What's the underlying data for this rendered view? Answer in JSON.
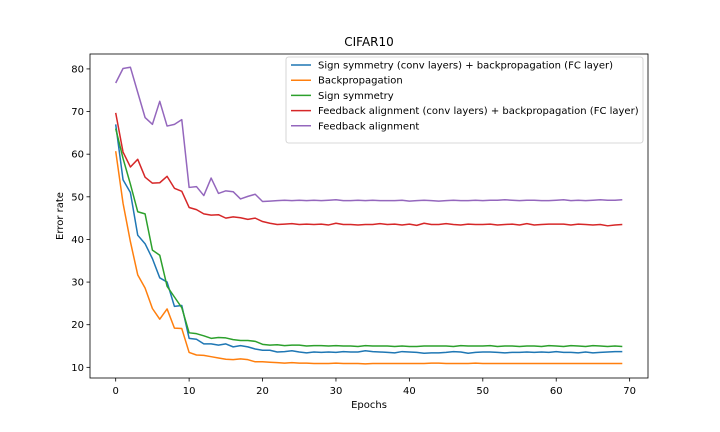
{
  "chart_data": {
    "type": "line",
    "title": "CIFAR10",
    "xlabel": "Epochs",
    "ylabel": "Error rate",
    "xlim": [
      -3.5,
      72.5
    ],
    "ylim": [
      7.5,
      83.5
    ],
    "xticks": [
      0,
      10,
      20,
      30,
      40,
      50,
      60,
      70
    ],
    "yticks": [
      10,
      20,
      30,
      40,
      50,
      60,
      70,
      80
    ],
    "grid": false,
    "legend_position": "top-right",
    "series": [
      {
        "name": "Sign symmetry (conv layers) + backpropagation (FC layer)",
        "color": "#1f77b4",
        "values": [
          67.0,
          54.0,
          51.0,
          41.0,
          39.0,
          35.5,
          31.0,
          30.0,
          24.3,
          24.5,
          16.8,
          16.6,
          15.5,
          15.5,
          15.2,
          15.5,
          14.8,
          15.1,
          14.8,
          14.3,
          14.0,
          14.0,
          13.6,
          13.7,
          13.9,
          13.6,
          13.4,
          13.6,
          13.5,
          13.6,
          13.5,
          13.7,
          13.6,
          13.6,
          13.9,
          13.7,
          13.6,
          13.5,
          13.4,
          13.7,
          13.6,
          13.5,
          13.3,
          13.4,
          13.4,
          13.5,
          13.7,
          13.6,
          13.3,
          13.5,
          13.6,
          13.6,
          13.5,
          13.4,
          13.5,
          13.5,
          13.6,
          13.5,
          13.6,
          13.5,
          13.7,
          13.5,
          13.5,
          13.4,
          13.6,
          13.4,
          13.5,
          13.6,
          13.7,
          13.7
        ]
      },
      {
        "name": "Backpropagation",
        "color": "#ff7f0e",
        "values": [
          60.7,
          48.5,
          39.5,
          31.7,
          28.6,
          23.8,
          21.3,
          23.7,
          19.2,
          19.1,
          13.5,
          12.9,
          12.8,
          12.5,
          12.2,
          11.9,
          11.8,
          12.0,
          11.8,
          11.3,
          11.3,
          11.2,
          11.1,
          11.0,
          11.1,
          11.0,
          11.0,
          10.9,
          10.9,
          10.9,
          11.0,
          10.9,
          10.9,
          10.9,
          10.8,
          10.9,
          10.9,
          10.9,
          10.9,
          10.9,
          10.9,
          10.9,
          10.9,
          11.0,
          11.0,
          10.9,
          10.9,
          10.9,
          10.9,
          11.0,
          10.9,
          10.9,
          10.9,
          10.9,
          10.9,
          10.9,
          10.9,
          10.9,
          10.9,
          10.9,
          10.9,
          10.9,
          10.9,
          10.9,
          10.9,
          10.9,
          10.9,
          10.9,
          10.9,
          10.9
        ]
      },
      {
        "name": "Sign symmetry",
        "color": "#2ca02c",
        "values": [
          66.0,
          59.0,
          53.0,
          46.5,
          46.0,
          37.5,
          36.3,
          29.0,
          26.5,
          24.0,
          18.1,
          17.9,
          17.4,
          16.8,
          17.0,
          16.9,
          16.5,
          16.3,
          16.3,
          16.1,
          15.4,
          15.2,
          15.3,
          15.1,
          15.2,
          15.2,
          15.0,
          15.1,
          15.1,
          15.0,
          15.1,
          15.0,
          15.0,
          14.9,
          15.1,
          15.0,
          15.0,
          15.0,
          14.9,
          15.0,
          14.9,
          14.9,
          15.0,
          15.0,
          15.0,
          15.0,
          14.9,
          15.1,
          15.0,
          15.0,
          15.0,
          15.1,
          14.9,
          15.0,
          15.0,
          14.9,
          15.0,
          15.0,
          14.9,
          15.1,
          15.0,
          14.9,
          15.1,
          15.0,
          14.9,
          15.1,
          15.0,
          14.9,
          15.0,
          14.9
        ]
      },
      {
        "name": "Feedback alignment (conv layers) + backpropagation (FC layer)",
        "color": "#d62728",
        "values": [
          69.7,
          60.5,
          57.0,
          58.8,
          54.6,
          53.2,
          53.3,
          54.8,
          52.0,
          51.3,
          47.5,
          47.0,
          46.0,
          45.7,
          45.8,
          45.0,
          45.3,
          45.1,
          44.7,
          45.0,
          44.2,
          43.8,
          43.5,
          43.6,
          43.7,
          43.5,
          43.6,
          43.5,
          43.6,
          43.4,
          43.8,
          43.5,
          43.5,
          43.4,
          43.5,
          43.5,
          43.7,
          43.5,
          43.6,
          43.4,
          43.6,
          43.3,
          43.8,
          43.5,
          43.5,
          43.7,
          43.5,
          43.4,
          43.6,
          43.5,
          43.5,
          43.6,
          43.4,
          43.5,
          43.6,
          43.4,
          43.7,
          43.4,
          43.5,
          43.6,
          43.6,
          43.6,
          43.4,
          43.6,
          43.5,
          43.4,
          43.5,
          43.2,
          43.4,
          43.5
        ]
      },
      {
        "name": "Feedback alignment",
        "color": "#9467bd",
        "values": [
          76.7,
          80.1,
          80.4,
          74.5,
          68.6,
          67.0,
          72.4,
          66.6,
          67.0,
          68.1,
          52.2,
          52.4,
          50.3,
          54.4,
          50.8,
          51.4,
          51.2,
          49.5,
          50.1,
          50.6,
          48.9,
          49.0,
          49.1,
          49.2,
          49.1,
          49.2,
          49.1,
          49.2,
          49.1,
          49.2,
          49.3,
          49.1,
          49.1,
          49.2,
          49.1,
          49.2,
          49.1,
          49.1,
          49.1,
          49.2,
          49.0,
          49.1,
          49.2,
          49.1,
          49.0,
          49.1,
          49.2,
          49.1,
          49.1,
          49.2,
          49.1,
          49.2,
          49.2,
          49.3,
          49.2,
          49.1,
          49.2,
          49.2,
          49.1,
          49.1,
          49.2,
          49.3,
          49.1,
          49.2,
          49.1,
          49.2,
          49.3,
          49.2,
          49.2,
          49.3
        ]
      }
    ]
  }
}
